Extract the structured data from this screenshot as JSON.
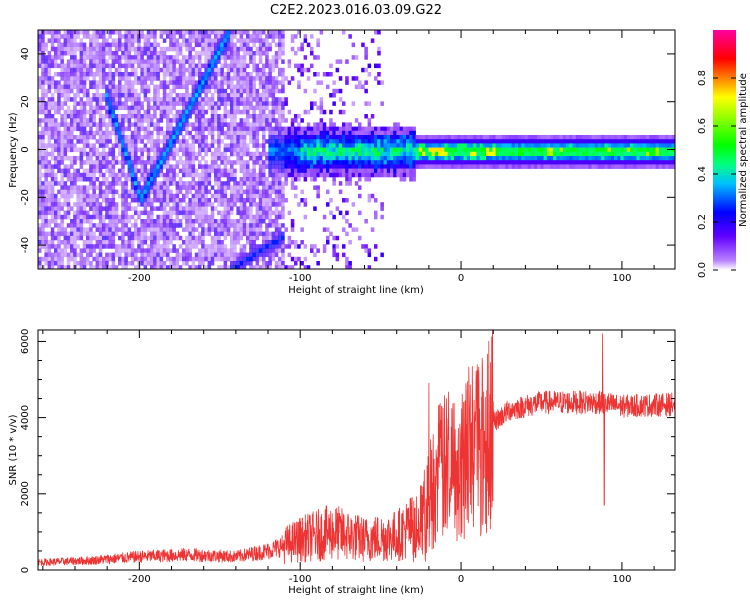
{
  "title": "C2E2.2023.016.03.09.G22",
  "colors": {
    "snr_line": "#ee3333",
    "axis": "#000000"
  },
  "chart_data": [
    {
      "type": "heatmap",
      "xlabel": "Height of straight line (km)",
      "ylabel": "Frequency (Hz)",
      "xlim": [
        -263,
        133
      ],
      "ylim": [
        -50,
        50
      ],
      "x_ticks": [
        -200,
        -100,
        0,
        100
      ],
      "y_ticks": [
        -40,
        -20,
        0,
        20,
        40
      ],
      "x_tick_labels": [
        "-200",
        "-100",
        "0",
        "100"
      ],
      "y_tick_labels": [
        "-40",
        "-20",
        "0",
        "20",
        "40"
      ],
      "colorbar": {
        "label": "Normalized spectral amplitude",
        "range": [
          0,
          1
        ],
        "ticks": [
          0,
          0.2,
          0.4,
          0.6,
          0.8
        ],
        "tick_labels": [
          "0.0",
          "0.2",
          "0.4",
          "0.6",
          "0.8"
        ],
        "colormap": "rainbow (white→violet→blue→cyan→green→yellow→red→magenta)"
      },
      "features": {
        "noise_region_km": [
          -263,
          -105
        ],
        "carrier_frequency_hz": 0,
        "carrier_start_km": -120,
        "v_feature_vertex": {
          "x_km": -200,
          "freq_hz": -20
        },
        "v_feature_left_top": {
          "x_km": -222,
          "freq_hz": 25
        },
        "v_feature_right_top": {
          "x_km": -145,
          "freq_hz": 50
        },
        "lower_streak": [
          {
            "x_km": -145,
            "freq_hz": -50
          },
          {
            "x_km": -110,
            "freq_hz": -35
          }
        ]
      }
    },
    {
      "type": "line",
      "xlabel": "Height of straight line (km)",
      "ylabel": "SNR (10 * v/v)",
      "xlim": [
        -263,
        133
      ],
      "ylim": [
        0,
        6300
      ],
      "x_ticks": [
        -200,
        -100,
        0,
        100
      ],
      "y_ticks": [
        0,
        2000,
        4000,
        6000
      ],
      "x_tick_labels": [
        "-200",
        "-100",
        "0",
        "100"
      ],
      "y_tick_labels": [
        "0",
        "2000",
        "4000",
        "6000"
      ],
      "series": [
        {
          "color": "#ee3333",
          "profile": [
            {
              "x": -263,
              "y": 200
            },
            {
              "x": -230,
              "y": 250
            },
            {
              "x": -200,
              "y": 350
            },
            {
              "x": -170,
              "y": 400
            },
            {
              "x": -140,
              "y": 350
            },
            {
              "x": -120,
              "y": 500
            },
            {
              "x": -100,
              "y": 800
            },
            {
              "x": -80,
              "y": 1000
            },
            {
              "x": -60,
              "y": 800
            },
            {
              "x": -40,
              "y": 900
            },
            {
              "x": -25,
              "y": 1300
            },
            {
              "x": -15,
              "y": 2500
            },
            {
              "x": -5,
              "y": 2800
            },
            {
              "x": 5,
              "y": 3200
            },
            {
              "x": 15,
              "y": 3700
            },
            {
              "x": 30,
              "y": 4200
            },
            {
              "x": 50,
              "y": 4400
            },
            {
              "x": 70,
              "y": 4400
            },
            {
              "x": 85,
              "y": 4400
            },
            {
              "x": 100,
              "y": 4300
            },
            {
              "x": 133,
              "y": 4350
            }
          ],
          "spikes": [
            {
              "x": -20,
              "y": 4900
            },
            {
              "x": -12,
              "y": 4300
            },
            {
              "x": 9,
              "y": 3900
            },
            {
              "x": 88,
              "y": 6200
            },
            {
              "x": 89,
              "y": 1700
            }
          ]
        }
      ]
    }
  ]
}
